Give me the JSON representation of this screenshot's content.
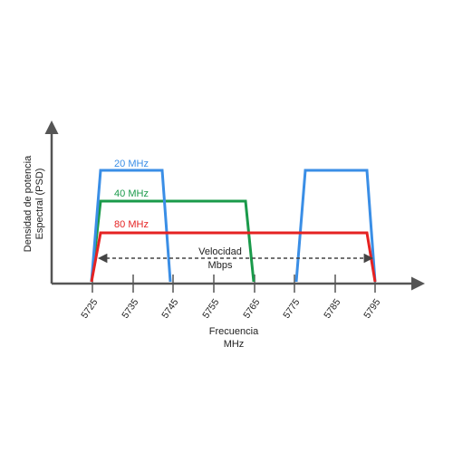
{
  "axes": {
    "y_label_line1": "Densidad de potencia",
    "y_label_line2": "Espectral (PSD)",
    "x_label_line1": "Frecuencia",
    "x_label_line2": "MHz"
  },
  "ticks": [
    "5725",
    "5735",
    "5745",
    "5755",
    "5765",
    "5775",
    "5785",
    "5795"
  ],
  "channels": [
    {
      "label": "20 MHz",
      "color": "#3a8ee6"
    },
    {
      "label": "40 MHz",
      "color": "#1a9a4a"
    },
    {
      "label": "80 MHz",
      "color": "#e52222"
    }
  ],
  "annotation": {
    "line1": "Velocidad",
    "line2": "Mbps"
  },
  "colors": {
    "axis": "#555555",
    "arrow": "#555555"
  }
}
